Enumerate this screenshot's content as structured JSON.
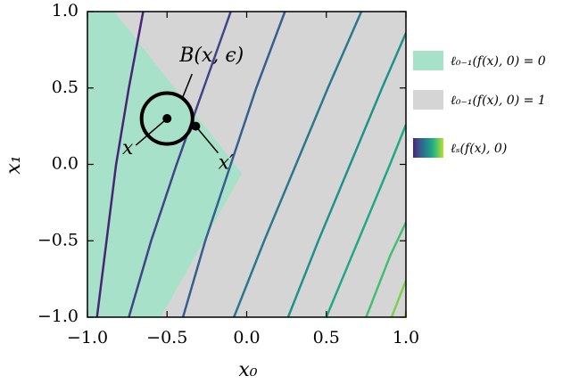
{
  "chart_data": {
    "type": "contour",
    "xlabel": "x₀",
    "ylabel": "x₁",
    "xlim": [
      -1,
      1
    ],
    "ylim": [
      -1,
      1
    ],
    "xticks": [
      {
        "value": -1,
        "label": "−1.0"
      },
      {
        "value": -0.5,
        "label": "−0.5"
      },
      {
        "value": 0,
        "label": "0.0"
      },
      {
        "value": 0.5,
        "label": "0.5"
      },
      {
        "value": 1,
        "label": "1.0"
      }
    ],
    "yticks": [
      {
        "value": -1,
        "label": "−1.0"
      },
      {
        "value": -0.5,
        "label": "−0.5"
      },
      {
        "value": 0,
        "label": "0.0"
      },
      {
        "value": 0.5,
        "label": "0.5"
      },
      {
        "value": 1,
        "label": "1.0"
      }
    ],
    "background": {
      "name": "ℓ₀₋₁(f(x), 0) = 1",
      "color": "#d5d5d5"
    },
    "regions": [
      {
        "name": "ℓ₀₋₁(f(x), 0) = 0",
        "color": "#a8e1c9",
        "x": [
          -1,
          -0.83,
          -0.03,
          -0.54,
          -1
        ],
        "y": [
          1,
          1,
          -0.06,
          -1,
          -1
        ]
      }
    ],
    "colorbar_label": "ℓₛ(f(x), 0)",
    "series": [
      {
        "color": "#482475",
        "x": [
          -0.65,
          -0.74,
          -0.82,
          -0.88,
          -0.94
        ],
        "y": [
          1,
          0.5,
          0,
          -0.5,
          -1
        ]
      },
      {
        "color": "#414487",
        "x": [
          -0.1,
          -0.27,
          -0.44,
          -0.6,
          -0.74
        ],
        "y": [
          1,
          0.5,
          0,
          -0.5,
          -1
        ]
      },
      {
        "color": "#355f8d",
        "x": [
          0.24,
          0.06,
          -0.1,
          -0.26,
          -0.4
        ],
        "y": [
          1,
          0.5,
          0,
          -0.5,
          -1
        ]
      },
      {
        "color": "#2a788e",
        "x": [
          0.72,
          0.51,
          0.31,
          0.11,
          -0.08
        ],
        "y": [
          1,
          0.5,
          0,
          -0.5,
          -1
        ]
      },
      {
        "color": "#21918c",
        "x": [
          1,
          0.85,
          0.65,
          0.45,
          0.26
        ],
        "y": [
          0.86,
          0.5,
          0,
          -0.5,
          -1
        ]
      },
      {
        "color": "#22a884",
        "x": [
          1,
          0.9,
          0.7,
          0.5
        ],
        "y": [
          0.26,
          0,
          -0.5,
          -1
        ]
      },
      {
        "color": "#44bf70",
        "x": [
          1,
          0.9,
          0.75
        ],
        "y": [
          -0.38,
          -0.6,
          -1
        ]
      },
      {
        "color": "#7ad151",
        "x": [
          1,
          0.91
        ],
        "y": [
          -0.76,
          -1
        ]
      },
      {
        "color": "#bddf26",
        "x": [
          1,
          0.99
        ],
        "y": [
          -0.97,
          -1
        ]
      }
    ],
    "ball": {
      "label": "B(x, ϵ)",
      "x": -0.5,
      "y": 0.3,
      "radius": 0.16
    },
    "points": [
      {
        "label": "x",
        "x": -0.5,
        "y": 0.3
      },
      {
        "label": "x′",
        "x": -0.32,
        "y": 0.25
      }
    ]
  }
}
